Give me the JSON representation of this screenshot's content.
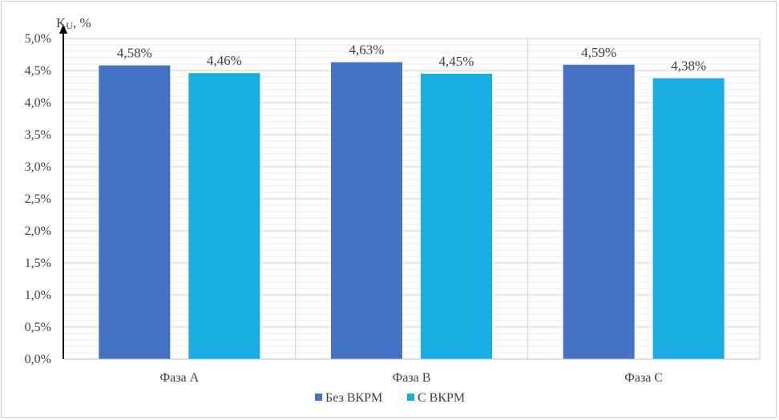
{
  "chart_data": {
    "type": "bar",
    "ylabel_main": "K",
    "ylabel_sub": "U",
    "ylabel_unit": ", %",
    "categories": [
      "Фаза А",
      "Фаза В",
      "Фаза С"
    ],
    "series": [
      {
        "name": "Без ВКРМ",
        "color": "#4472c4",
        "values": [
          4.58,
          4.63,
          4.59
        ],
        "labels": [
          "4,58%",
          "4,63%",
          "4,59%"
        ]
      },
      {
        "name": "С ВКРМ",
        "color": "#1aade4",
        "values": [
          4.46,
          4.45,
          4.38
        ],
        "labels": [
          "4,46%",
          "4,45%",
          "4,38%"
        ]
      }
    ],
    "ylim": [
      0,
      5
    ],
    "yticks": [
      0,
      0.5,
      1,
      1.5,
      2,
      2.5,
      3,
      3.5,
      4,
      4.5,
      5
    ],
    "ytick_labels": [
      "0,0%",
      "0,5%",
      "1,0%",
      "1,5%",
      "2,0%",
      "2,5%",
      "3,0%",
      "3,5%",
      "4,0%",
      "4,5%",
      "5,0%"
    ],
    "grid": true,
    "legend_position": "bottom"
  }
}
